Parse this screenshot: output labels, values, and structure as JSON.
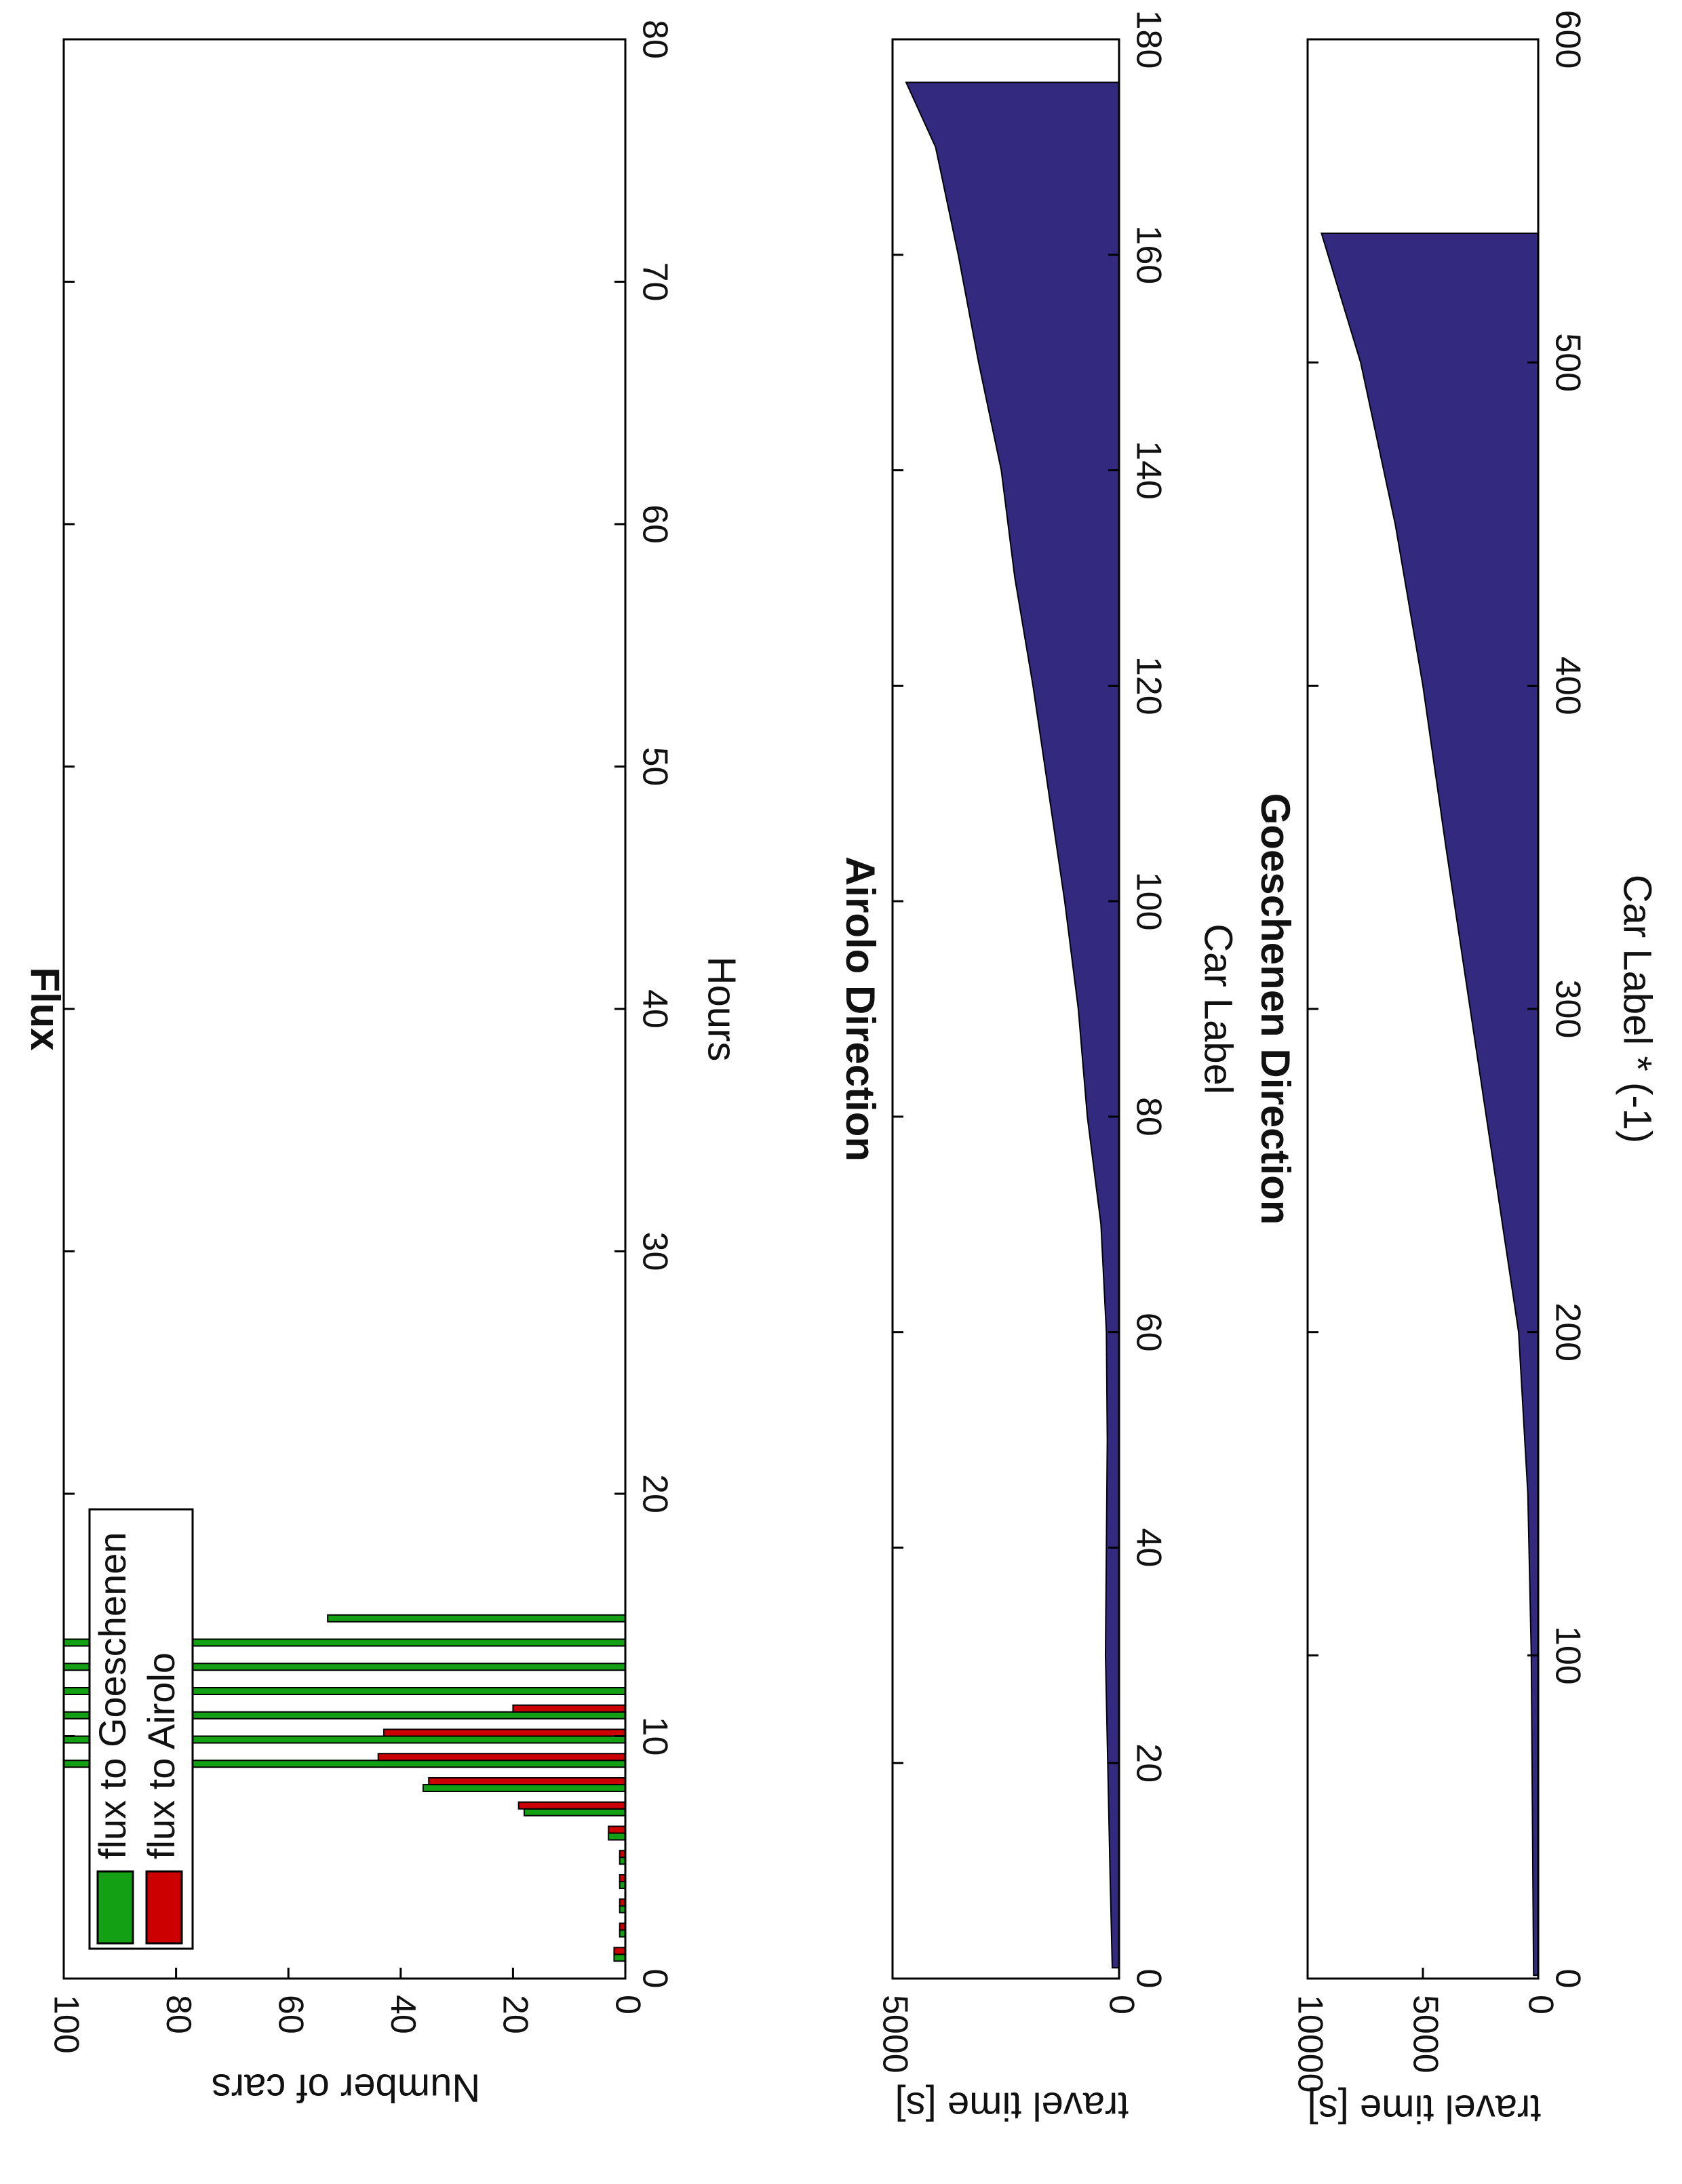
{
  "chart_data": [
    {
      "type": "bar",
      "title": "Flux",
      "xlabel": "Hours",
      "ylabel": "Number of cars",
      "xlim": [
        0,
        80
      ],
      "ylim": [
        0,
        100
      ],
      "xticks": [
        0,
        10,
        20,
        30,
        40,
        50,
        60,
        70,
        80
      ],
      "yticks": [
        0,
        20,
        40,
        60,
        80,
        100
      ],
      "orientation": "figure rotated 90 degrees clockwise",
      "legend": {
        "placement": "top-left",
        "entries": [
          "flux to Goeschenen",
          "flux to Airolo"
        ]
      },
      "colors": {
        "flux to Goeschenen": "#14a014",
        "flux to Airolo": "#cc0000"
      },
      "categories": [
        1,
        2,
        3,
        4,
        5,
        6,
        7,
        8,
        9,
        10,
        11,
        12,
        13,
        14,
        15
      ],
      "series": [
        {
          "name": "flux to Goeschenen",
          "values": [
            2,
            1,
            1,
            1,
            1,
            3,
            18,
            36,
            100,
            100,
            100,
            100,
            100,
            100,
            53
          ]
        },
        {
          "name": "flux to Airolo",
          "values": [
            2,
            1,
            1,
            1,
            1,
            3,
            19,
            35,
            44,
            43,
            20,
            0,
            0,
            0,
            0
          ]
        }
      ]
    },
    {
      "type": "area",
      "title": "Airolo Direction",
      "xlabel": "Car Label",
      "ylabel": "travel time [s]",
      "xlim": [
        0,
        180
      ],
      "ylim": [
        0,
        5000
      ],
      "xticks": [
        0,
        20,
        40,
        60,
        80,
        100,
        120,
        140,
        160,
        180
      ],
      "yticks": [
        0,
        5000
      ],
      "grid": false,
      "color": "#332a80",
      "x": [
        1,
        10,
        20,
        30,
        40,
        50,
        60,
        70,
        80,
        90,
        100,
        110,
        120,
        130,
        140,
        150,
        160,
        170,
        176
      ],
      "y": [
        150,
        200,
        250,
        300,
        280,
        260,
        280,
        400,
        700,
        900,
        1200,
        1550,
        1900,
        2300,
        2600,
        3100,
        3550,
        4050,
        4700
      ]
    },
    {
      "type": "area",
      "title": "Goeschenen Direction",
      "xlabel": "Car Label * (-1)",
      "ylabel": "travel time [s]",
      "xlim": [
        0,
        600
      ],
      "ylim": [
        0,
        10000
      ],
      "xticks": [
        0,
        100,
        200,
        300,
        400,
        500,
        600
      ],
      "yticks": [
        0,
        5000,
        10000
      ],
      "grid": false,
      "color": "#332a80",
      "x": [
        1,
        50,
        100,
        150,
        200,
        250,
        300,
        350,
        400,
        450,
        500,
        540
      ],
      "y": [
        200,
        250,
        300,
        450,
        850,
        1900,
        2950,
        4000,
        5000,
        6200,
        7700,
        9400
      ]
    }
  ]
}
